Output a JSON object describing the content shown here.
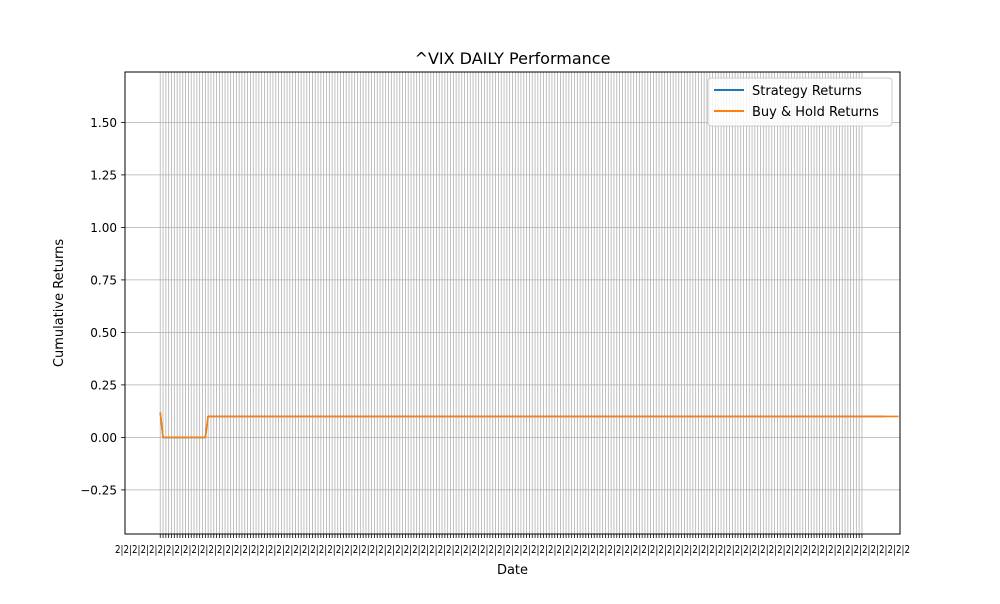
{
  "chart_data": {
    "type": "line",
    "title": "^VIX DAILY Performance",
    "xlabel": "Date",
    "ylabel": "Cumulative Returns",
    "ylim": [
      -0.46,
      1.74
    ],
    "yticks": [
      -0.25,
      0.0,
      0.25,
      0.5,
      0.75,
      1.0,
      1.25,
      1.5
    ],
    "ytick_labels": [
      "−0.25",
      "0.00",
      "0.25",
      "0.50",
      "0.75",
      "1.00",
      "1.25",
      "1.50"
    ],
    "grid": true,
    "legend_position": "top-right",
    "x_count": 250,
    "xlim": [
      -12.5,
      262.5
    ],
    "x_tick_labels_illegible": true,
    "series": [
      {
        "name": "Strategy Returns",
        "color": "#1f77b4",
        "values": [
          0.12,
          0.0,
          0.0,
          0.0,
          0.0,
          0.0,
          0.0,
          0.0,
          0.0,
          0.0,
          0.0,
          0.0,
          0.0,
          0.0,
          0.0,
          0.0,
          0.0,
          0.1,
          0.1,
          0.1,
          0.1,
          0.1,
          0.1,
          0.1,
          0.1,
          0.1,
          0.1,
          0.1,
          0.1,
          0.1,
          0.1,
          0.1,
          0.1,
          0.1,
          0.1,
          0.1,
          0.1,
          0.1,
          0.1,
          0.1,
          0.1,
          0.1,
          0.1,
          0.1,
          0.1,
          0.1,
          0.1,
          0.1,
          0.1,
          0.1,
          0.1,
          0.1,
          0.1,
          0.1,
          0.1,
          0.1,
          0.1,
          0.1,
          0.1,
          0.1,
          0.1,
          0.1,
          0.1,
          0.1,
          0.1,
          0.1,
          0.1,
          0.1,
          0.1,
          0.1,
          0.1,
          0.1,
          0.1,
          0.1,
          0.1,
          0.1,
          0.1,
          0.1,
          0.1,
          0.1,
          0.1,
          0.1,
          0.1,
          0.1,
          0.1,
          0.1,
          0.1,
          0.1,
          0.1,
          0.1,
          0.1,
          0.1,
          0.1,
          0.1,
          0.1,
          0.1,
          0.1,
          0.1,
          0.1,
          0.1,
          0.1,
          0.1,
          0.1,
          0.1,
          0.1,
          0.1,
          0.1,
          0.1,
          0.1,
          0.1,
          0.1,
          0.1,
          0.1,
          0.1,
          0.1,
          0.1,
          0.1,
          0.1,
          0.1,
          0.1,
          0.1,
          0.1,
          0.1,
          0.1,
          0.1,
          0.1,
          0.1,
          0.1,
          0.1,
          0.1,
          0.1,
          0.1,
          0.1,
          0.1,
          0.1,
          0.1,
          0.1,
          0.1,
          0.1,
          0.1,
          0.1,
          0.1,
          0.1,
          0.1,
          0.1,
          0.1,
          0.1,
          0.1,
          0.1,
          0.1,
          0.1,
          0.1,
          0.1,
          0.1,
          0.1,
          0.1,
          0.1,
          0.1,
          0.1,
          0.1,
          0.1,
          0.1,
          0.1,
          0.1,
          0.1,
          0.1,
          0.1,
          0.1,
          0.1,
          0.1,
          0.1,
          0.1,
          0.1,
          0.1,
          0.1,
          0.1,
          0.1,
          0.1,
          0.1,
          0.1,
          0.1,
          0.1,
          0.1,
          0.1,
          0.1,
          0.1,
          0.1,
          0.1,
          0.1,
          0.1,
          0.1,
          0.1,
          0.1,
          0.1,
          0.1,
          0.1,
          0.1,
          0.1,
          0.1,
          0.1,
          0.1,
          0.1,
          0.1,
          0.1,
          0.1,
          0.1,
          0.1,
          0.1,
          0.1,
          0.1,
          0.1,
          0.1,
          0.1,
          0.1,
          0.1,
          0.1,
          0.1,
          0.1,
          0.1,
          0.1,
          0.1,
          0.1,
          0.1,
          0.1,
          0.1,
          0.1,
          0.1,
          0.1,
          0.1,
          0.1,
          0.1,
          0.1,
          0.1,
          0.1,
          0.1,
          0.1,
          0.1,
          0.1,
          0.1,
          0.1,
          0.1,
          0.1,
          0.1,
          0.1,
          0.1,
          0.1,
          0.1,
          0.1,
          0.1,
          0.1,
          0.1,
          0.1,
          0.1,
          0.1,
          0.1,
          0.1,
          0.1,
          0.1
        ]
      },
      {
        "name": "Buy & Hold Returns",
        "color": "#ff7f0e",
        "values": [
          0.12,
          0.0,
          0.0,
          0.0,
          0.0,
          0.0,
          0.0,
          0.0,
          0.0,
          0.0,
          0.0,
          0.0,
          0.0,
          0.0,
          0.0,
          0.0,
          0.0,
          0.1,
          0.1,
          0.1,
          0.1,
          0.1,
          0.1,
          0.1,
          0.1,
          0.1,
          0.1,
          0.1,
          0.1,
          0.1,
          0.1,
          0.1,
          0.1,
          0.1,
          0.1,
          0.1,
          0.1,
          0.1,
          0.1,
          0.1,
          0.1,
          0.1,
          0.1,
          0.1,
          0.1,
          0.1,
          0.1,
          0.1,
          0.1,
          0.1,
          0.1,
          0.1,
          0.1,
          0.1,
          0.1,
          0.1,
          0.1,
          0.1,
          0.1,
          0.1,
          0.1,
          0.1,
          0.1,
          0.1,
          0.1,
          0.1,
          0.1,
          0.1,
          0.1,
          0.1,
          0.1,
          0.1,
          0.1,
          0.1,
          0.1,
          0.1,
          0.1,
          0.1,
          0.1,
          0.1,
          0.1,
          0.1,
          0.1,
          0.1,
          0.1,
          0.1,
          0.1,
          0.1,
          0.1,
          0.1,
          0.1,
          0.1,
          0.1,
          0.1,
          0.1,
          0.1,
          0.1,
          0.1,
          0.1,
          0.1,
          0.1,
          0.1,
          0.1,
          0.1,
          0.1,
          0.1,
          0.1,
          0.1,
          0.1,
          0.1,
          0.1,
          0.1,
          0.1,
          0.1,
          0.1,
          0.1,
          0.1,
          0.1,
          0.1,
          0.1,
          0.1,
          0.1,
          0.1,
          0.1,
          0.1,
          0.1,
          0.1,
          0.1,
          0.1,
          0.1,
          0.1,
          0.1,
          0.1,
          0.1,
          0.1,
          0.1,
          0.1,
          0.1,
          0.1,
          0.1,
          0.1,
          0.1,
          0.1,
          0.1,
          0.1,
          0.1,
          0.1,
          0.1,
          0.1,
          0.1,
          0.1,
          0.1,
          0.1,
          0.1,
          0.1,
          0.1,
          0.1,
          0.1,
          0.1,
          0.1,
          0.1,
          0.1,
          0.1,
          0.1,
          0.1,
          0.1,
          0.1,
          0.1,
          0.1,
          0.1,
          0.1,
          0.1,
          0.1,
          0.1,
          0.1,
          0.1,
          0.1,
          0.1,
          0.1,
          0.1,
          0.1,
          0.1,
          0.1,
          0.1,
          0.1,
          0.1,
          0.1,
          0.1,
          0.1,
          0.1,
          0.1,
          0.1,
          0.1,
          0.1,
          0.1,
          0.1,
          0.1,
          0.1,
          0.1,
          0.1,
          0.1,
          0.1,
          0.1,
          0.1,
          0.1,
          0.1,
          0.1,
          0.1,
          0.1,
          0.1,
          0.1,
          0.1,
          0.1,
          0.1,
          0.1,
          0.1,
          0.1,
          0.1,
          0.1,
          0.1,
          0.1,
          0.1,
          0.1,
          0.1,
          0.1,
          0.1,
          0.1,
          0.1,
          0.1,
          0.1,
          0.1,
          0.1,
          0.1,
          0.1,
          0.1,
          0.1,
          0.1,
          0.1,
          0.1,
          0.1,
          0.1,
          0.1,
          0.1,
          0.1,
          0.1,
          0.1,
          0.1,
          0.1,
          0.1,
          0.1,
          0.1,
          0.1,
          0.1,
          0.1,
          0.1,
          0.1,
          0.1,
          0.1,
          0.1,
          0.1,
          0.1,
          0.1,
          0.1
        ]
      }
    ]
  }
}
